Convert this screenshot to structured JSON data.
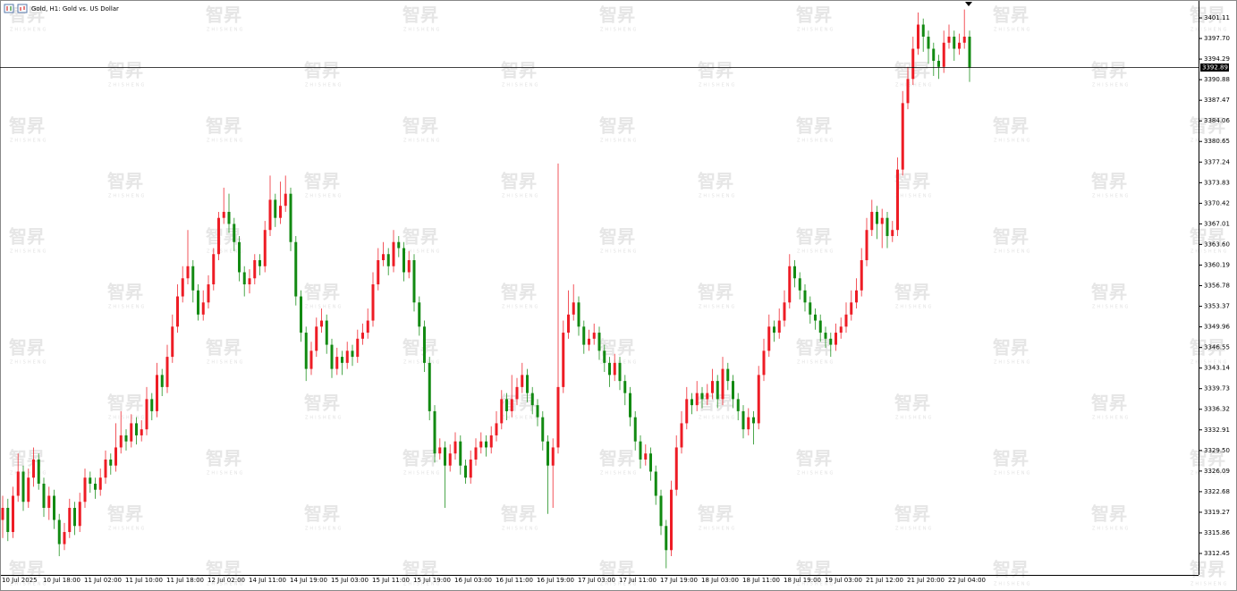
{
  "chart_data": {
    "type": "candlestick",
    "title": "Gold, H1: Gold vs. US Dollar",
    "watermark": "智昇",
    "watermark_sub": "ZHISHENG",
    "up_color": "#ee1c25",
    "down_color": "#128a12",
    "last_price": 3392.89,
    "ylim": [
      3308.9,
      3404.07
    ],
    "yticks": [
      3401.11,
      {
        "value": 3397.7,
        "label": "3397.70"
      },
      3394.29,
      3390.88,
      3387.47,
      3384.06,
      3380.65,
      3377.24,
      3373.83,
      3370.42,
      3367.01,
      {
        "value": 3363.6,
        "label": "3363.60"
      },
      3360.19,
      3356.78,
      3353.37,
      3349.96,
      3346.55,
      3343.14,
      3339.73,
      3336.32,
      3332.91,
      {
        "value": 3329.5,
        "label": "3329.50"
      },
      3326.09,
      3322.68,
      3319.27,
      3315.86,
      3312.45
    ],
    "categories": [
      "10 Jul 2025",
      null,
      null,
      null,
      null,
      null,
      null,
      null,
      "10 Jul 18:00",
      null,
      null,
      null,
      null,
      null,
      null,
      null,
      "11 Jul 02:00",
      null,
      null,
      null,
      null,
      null,
      null,
      null,
      "11 Jul 10:00",
      null,
      null,
      null,
      null,
      null,
      null,
      null,
      "11 Jul 18:00",
      null,
      null,
      null,
      null,
      null,
      null,
      null,
      "12 Jul 02:00",
      null,
      null,
      null,
      null,
      null,
      null,
      null,
      "14 Jul 11:00",
      null,
      null,
      null,
      null,
      null,
      null,
      null,
      "14 Jul 19:00",
      null,
      null,
      null,
      null,
      null,
      null,
      null,
      "15 Jul 03:00",
      null,
      null,
      null,
      null,
      null,
      null,
      null,
      "15 Jul 11:00",
      null,
      null,
      null,
      null,
      null,
      null,
      null,
      "15 Jul 19:00",
      null,
      null,
      null,
      null,
      null,
      null,
      null,
      "16 Jul 03:00",
      null,
      null,
      null,
      null,
      null,
      null,
      null,
      "16 Jul 11:00",
      null,
      null,
      null,
      null,
      null,
      null,
      null,
      "16 Jul 19:00",
      null,
      null,
      null,
      null,
      null,
      null,
      null,
      "17 Jul 03:00",
      null,
      null,
      null,
      null,
      null,
      null,
      null,
      "17 Jul 11:00",
      null,
      null,
      null,
      null,
      null,
      null,
      null,
      "17 Jul 19:00",
      null,
      null,
      null,
      null,
      null,
      null,
      null,
      "18 Jul 03:00",
      null,
      null,
      null,
      null,
      null,
      null,
      null,
      "18 Jul 11:00",
      null,
      null,
      null,
      null,
      null,
      null,
      null,
      "18 Jul 19:00",
      null,
      null,
      null,
      null,
      null,
      null,
      null,
      "19 Jul 03:00",
      null,
      null,
      null,
      null,
      null,
      null,
      null,
      "21 Jul 12:00",
      null,
      null,
      null,
      null,
      null,
      null,
      null,
      "21 Jul 20:00",
      null,
      null,
      null,
      null,
      null,
      null,
      null,
      "22 Jul 04:00",
      null,
      null,
      null,
      null
    ],
    "ohlc": [
      [
        3318,
        3322,
        3315,
        3320
      ],
      [
        3320,
        3321.5,
        3314.5,
        3316
      ],
      [
        3316,
        3323.5,
        3315,
        3322
      ],
      [
        3322,
        3329,
        3321,
        3326
      ],
      [
        3326,
        3327,
        3319.5,
        3321
      ],
      [
        3321,
        3326.5,
        3320,
        3325
      ],
      [
        3325,
        3330,
        3323.5,
        3328
      ],
      [
        3328,
        3329,
        3323,
        3324
      ],
      [
        3324,
        3325,
        3318.5,
        3320
      ],
      [
        3320,
        3323.5,
        3318,
        3322
      ],
      [
        3322,
        3323,
        3316.5,
        3318
      ],
      [
        3318,
        3319,
        3312,
        3314
      ],
      [
        3314,
        3317.5,
        3313,
        3316
      ],
      [
        3316,
        3321.5,
        3315,
        3320
      ],
      [
        3320,
        3321,
        3315.5,
        3317
      ],
      [
        3317,
        3322.5,
        3316,
        3321
      ],
      [
        3321,
        3326.5,
        3320,
        3325
      ],
      [
        3325,
        3326,
        3322.5,
        3324
      ],
      [
        3324,
        3325,
        3321.5,
        3323
      ],
      [
        3323,
        3326.5,
        3322,
        3325
      ],
      [
        3325,
        3329.5,
        3324,
        3328
      ],
      [
        3328,
        3329,
        3325.5,
        3327
      ],
      [
        3327,
        3334,
        3326,
        3330
      ],
      [
        3330,
        3336,
        3329,
        3332
      ],
      [
        3332,
        3333,
        3329.5,
        3331
      ],
      [
        3331,
        3335.5,
        3330,
        3334
      ],
      [
        3334,
        3335,
        3330.5,
        3332
      ],
      [
        3332,
        3334.5,
        3331,
        3333
      ],
      [
        3333,
        3340,
        3332,
        3338
      ],
      [
        3338,
        3339,
        3334.5,
        3336
      ],
      [
        3336,
        3344,
        3335,
        3342
      ],
      [
        3342,
        3343,
        3338.5,
        3340
      ],
      [
        3340,
        3347,
        3339,
        3345
      ],
      [
        3345,
        3352,
        3344,
        3350
      ],
      [
        3350,
        3357,
        3349,
        3355
      ],
      [
        3355,
        3360,
        3354,
        3358
      ],
      [
        3358,
        3366,
        3357,
        3360
      ],
      [
        3360,
        3361,
        3354,
        3356
      ],
      [
        3356,
        3357,
        3351,
        3352
      ],
      [
        3352,
        3356,
        3351,
        3354
      ],
      [
        3354,
        3358.5,
        3353,
        3357
      ],
      [
        3357,
        3363,
        3356,
        3362
      ],
      [
        3362,
        3369,
        3361,
        3368
      ],
      [
        3368,
        3373,
        3367,
        3369
      ],
      [
        3369,
        3372,
        3365.5,
        3367
      ],
      [
        3367,
        3368,
        3362.5,
        3364
      ],
      [
        3364,
        3365,
        3357.5,
        3359
      ],
      [
        3359,
        3360,
        3355,
        3357
      ],
      [
        3357,
        3359.5,
        3355.5,
        3358
      ],
      [
        3358,
        3362,
        3357,
        3361
      ],
      [
        3361,
        3362,
        3358.5,
        3360
      ],
      [
        3360,
        3367.5,
        3359,
        3366
      ],
      [
        3366,
        3375,
        3365,
        3371
      ],
      [
        3371,
        3372,
        3366.5,
        3368
      ],
      [
        3368,
        3374,
        3367,
        3370
      ],
      [
        3370,
        3375,
        3369,
        3372
      ],
      [
        3372,
        3373,
        3362.5,
        3364
      ],
      [
        3364,
        3365,
        3353.5,
        3355
      ],
      [
        3355,
        3356,
        3347.5,
        3349
      ],
      [
        3349,
        3350,
        3341,
        3343
      ],
      [
        3343,
        3347.5,
        3342,
        3346
      ],
      [
        3346,
        3351.5,
        3345,
        3350
      ],
      [
        3350,
        3353,
        3349,
        3351
      ],
      [
        3351,
        3352,
        3345.5,
        3347
      ],
      [
        3347,
        3348,
        3341.5,
        3343
      ],
      [
        3343,
        3346.5,
        3342,
        3345
      ],
      [
        3345,
        3346,
        3342,
        3344
      ],
      [
        3344,
        3347.5,
        3343,
        3346
      ],
      [
        3346,
        3347,
        3343.5,
        3345
      ],
      [
        3345,
        3349.5,
        3344,
        3348
      ],
      [
        3348,
        3350.5,
        3347,
        3349
      ],
      [
        3349,
        3353,
        3348,
        3351
      ],
      [
        3351,
        3359,
        3350,
        3357
      ],
      [
        3357,
        3363,
        3356,
        3361
      ],
      [
        3361,
        3364,
        3360,
        3362
      ],
      [
        3362,
        3363,
        3358.5,
        3360
      ],
      [
        3360,
        3366,
        3359,
        3364
      ],
      [
        3364,
        3365,
        3361.5,
        3363
      ],
      [
        3363,
        3364,
        3357.5,
        3359
      ],
      [
        3359,
        3362.5,
        3358,
        3361
      ],
      [
        3361,
        3362,
        3352.5,
        3354
      ],
      [
        3354,
        3355,
        3348.5,
        3350
      ],
      [
        3350,
        3351,
        3342.5,
        3344
      ],
      [
        3344,
        3345,
        3334.5,
        3336
      ],
      [
        3336,
        3337,
        3327.5,
        3329
      ],
      [
        3329,
        3331.5,
        3328,
        3330
      ],
      [
        3330,
        3331,
        3320,
        3327
      ],
      [
        3327,
        3330.5,
        3326,
        3329
      ],
      [
        3329,
        3332.5,
        3328,
        3331
      ],
      [
        3331,
        3332,
        3325.5,
        3327
      ],
      [
        3327,
        3328,
        3324,
        3325
      ],
      [
        3325,
        3329.5,
        3324,
        3328
      ],
      [
        3328,
        3331.5,
        3327,
        3330
      ],
      [
        3330,
        3332.5,
        3329,
        3331
      ],
      [
        3331,
        3332,
        3328.5,
        3330
      ],
      [
        3330,
        3333.5,
        3329,
        3332
      ],
      [
        3332,
        3336,
        3331,
        3334
      ],
      [
        3334,
        3339.5,
        3333,
        3338
      ],
      [
        3338,
        3339,
        3334.5,
        3336
      ],
      [
        3336,
        3342,
        3335,
        3338
      ],
      [
        3338,
        3341.5,
        3337,
        3340
      ],
      [
        3340,
        3344,
        3339,
        3342
      ],
      [
        3342,
        3343,
        3337.5,
        3339
      ],
      [
        3339,
        3340,
        3335.5,
        3337
      ],
      [
        3337,
        3338,
        3333.5,
        3335
      ],
      [
        3335,
        3336,
        3329.5,
        3331
      ],
      [
        3331,
        3332,
        3319,
        3327
      ],
      [
        3327,
        3331.5,
        3320,
        3330
      ],
      [
        3330,
        3377,
        3329,
        3340
      ],
      [
        3340,
        3351,
        3339,
        3349
      ],
      [
        3349,
        3356,
        3348,
        3352
      ],
      [
        3352,
        3357,
        3351,
        3354
      ],
      [
        3354,
        3355,
        3348.5,
        3350
      ],
      [
        3350,
        3351,
        3345.5,
        3347
      ],
      [
        3347,
        3349.5,
        3346,
        3348
      ],
      [
        3348,
        3350.5,
        3347,
        3349
      ],
      [
        3349,
        3350,
        3344.5,
        3346
      ],
      [
        3346,
        3347,
        3342.5,
        3344
      ],
      [
        3344,
        3345,
        3340,
        3342
      ],
      [
        3342,
        3345.5,
        3341,
        3344
      ],
      [
        3344,
        3345,
        3339.5,
        3341
      ],
      [
        3341,
        3342,
        3337,
        3339
      ],
      [
        3339,
        3340,
        3333.5,
        3335
      ],
      [
        3335,
        3336,
        3329.5,
        3331
      ],
      [
        3331,
        3332,
        3326.5,
        3328
      ],
      [
        3328,
        3330.5,
        3327,
        3329
      ],
      [
        3329,
        3330,
        3324.5,
        3326
      ],
      [
        3326,
        3327,
        3320.5,
        3322
      ],
      [
        3322,
        3323,
        3315.5,
        3317
      ],
      [
        3317,
        3318,
        3310,
        3313
      ],
      [
        3313,
        3324.5,
        3312,
        3323
      ],
      [
        3323,
        3332,
        3322,
        3330
      ],
      [
        3330,
        3336,
        3329,
        3334
      ],
      [
        3334,
        3340,
        3333,
        3338
      ],
      [
        3338,
        3339,
        3335.5,
        3337
      ],
      [
        3337,
        3341,
        3336,
        3339
      ],
      [
        3339,
        3340,
        3336.5,
        3338
      ],
      [
        3338,
        3340.5,
        3337,
        3339
      ],
      [
        3339,
        3343,
        3338,
        3341
      ],
      [
        3341,
        3342,
        3336.5,
        3338
      ],
      [
        3338,
        3345,
        3337,
        3343
      ],
      [
        3343,
        3344,
        3339.5,
        3341
      ],
      [
        3341,
        3342,
        3336.5,
        3338
      ],
      [
        3338,
        3339,
        3334.5,
        3336
      ],
      [
        3336,
        3337,
        3331.5,
        3333
      ],
      [
        3333,
        3336.5,
        3332,
        3335
      ],
      [
        3335,
        3336,
        3330.5,
        3334
      ],
      [
        3334,
        3343.5,
        3333,
        3342
      ],
      [
        3342,
        3348,
        3341,
        3346
      ],
      [
        3346,
        3352,
        3345,
        3350
      ],
      [
        3350,
        3351,
        3347.5,
        3349
      ],
      [
        3349,
        3353,
        3348,
        3351
      ],
      [
        3351,
        3356,
        3350,
        3354
      ],
      [
        3354,
        3362,
        3353,
        3360
      ],
      [
        3360,
        3361,
        3356.5,
        3358
      ],
      [
        3358,
        3359,
        3354.5,
        3356
      ],
      [
        3356,
        3357,
        3352.5,
        3354
      ],
      [
        3354,
        3355,
        3350.5,
        3352
      ],
      [
        3352,
        3353,
        3349.5,
        3351
      ],
      [
        3351,
        3352,
        3347.5,
        3349
      ],
      [
        3349,
        3350,
        3346.5,
        3348
      ],
      [
        3348,
        3349,
        3345,
        3347
      ],
      [
        3347,
        3350.5,
        3346,
        3349
      ],
      [
        3349,
        3351.5,
        3348,
        3350
      ],
      [
        3350,
        3354,
        3349,
        3352
      ],
      [
        3352,
        3356,
        3351,
        3354
      ],
      [
        3354,
        3358,
        3353,
        3356
      ],
      [
        3356,
        3363,
        3355,
        3361
      ],
      [
        3361,
        3368,
        3360,
        3366
      ],
      [
        3366,
        3371,
        3365,
        3369
      ],
      [
        3369,
        3370,
        3364.5,
        3367
      ],
      [
        3367,
        3369.5,
        3363,
        3368
      ],
      [
        3368,
        3369,
        3363,
        3365
      ],
      [
        3365,
        3367.5,
        3364,
        3366
      ],
      [
        3366,
        3378,
        3365,
        3376
      ],
      [
        3376,
        3389,
        3375,
        3387
      ],
      [
        3387,
        3393,
        3386,
        3391
      ],
      [
        3391,
        3398,
        3390,
        3396
      ],
      [
        3396,
        3402,
        3395,
        3400
      ],
      [
        3400,
        3401,
        3395.5,
        3398
      ],
      [
        3398,
        3399,
        3393.5,
        3396
      ],
      [
        3396,
        3397,
        3391.5,
        3394
      ],
      [
        3394,
        3395,
        3391,
        3393
      ],
      [
        3393,
        3399,
        3392,
        3397
      ],
      [
        3397,
        3400,
        3396,
        3398
      ],
      [
        3398,
        3399,
        3394,
        3396
      ],
      [
        3396,
        3398.5,
        3395,
        3397
      ],
      [
        3397,
        3402.5,
        3396,
        3398
      ],
      [
        3398,
        3399,
        3390.5,
        3392.89
      ]
    ]
  }
}
